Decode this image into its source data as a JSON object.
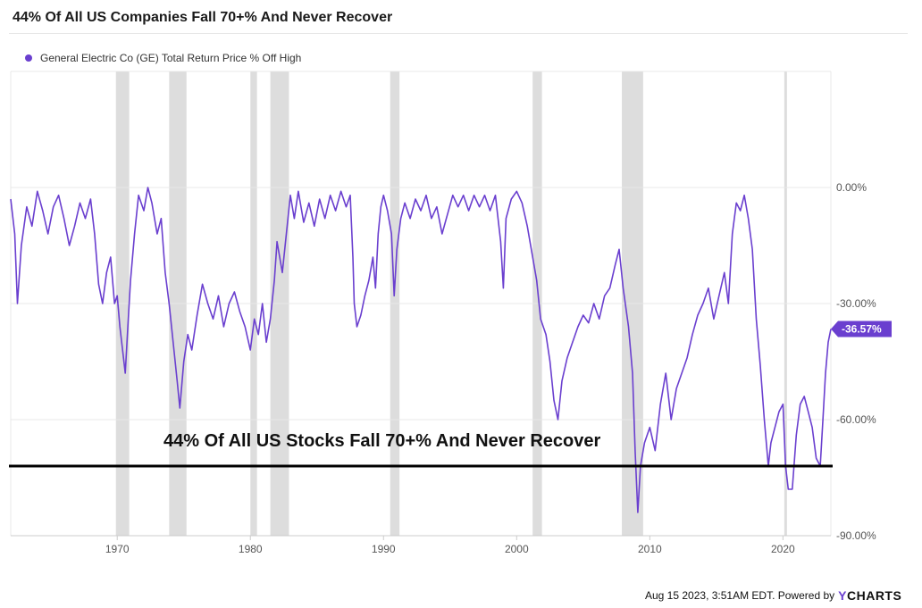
{
  "colors": {
    "series": "#6a3fcf",
    "recession": "#dddddd",
    "threshold_line": "#000000",
    "grid": "#e8e8e8"
  },
  "chart_data": {
    "type": "line",
    "title": "44% Of All US Companies Fall 70+% And Never Recover",
    "legend_position": "top-left",
    "grid": true,
    "xlim": [
      1962,
      2023.6
    ],
    "ylim": [
      -90,
      30
    ],
    "x_ticks": [
      {
        "value": 1970,
        "label": "1970"
      },
      {
        "value": 1980,
        "label": "1980"
      },
      {
        "value": 1990,
        "label": "1990"
      },
      {
        "value": 2000,
        "label": "2000"
      },
      {
        "value": 2010,
        "label": "2010"
      },
      {
        "value": 2020,
        "label": "2020"
      }
    ],
    "y_ticks": [
      {
        "value": 0,
        "label": "0.00%"
      },
      {
        "value": -30,
        "label": "-30.00%"
      },
      {
        "value": -60,
        "label": "-60.00%"
      },
      {
        "value": -90,
        "label": "-90.00%"
      }
    ],
    "series": [
      {
        "name": "General Electric Co (GE) Total Return Price % Off High",
        "last_value": -36.57,
        "last_label": "-36.57%",
        "points": [
          [
            1962.0,
            -3
          ],
          [
            1962.3,
            -12
          ],
          [
            1962.5,
            -30
          ],
          [
            1962.8,
            -15
          ],
          [
            1963.2,
            -5
          ],
          [
            1963.6,
            -10
          ],
          [
            1964.0,
            -1
          ],
          [
            1964.4,
            -6
          ],
          [
            1964.8,
            -12
          ],
          [
            1965.2,
            -5
          ],
          [
            1965.6,
            -2
          ],
          [
            1966.0,
            -8
          ],
          [
            1966.4,
            -15
          ],
          [
            1966.8,
            -10
          ],
          [
            1967.2,
            -4
          ],
          [
            1967.6,
            -8
          ],
          [
            1968.0,
            -3
          ],
          [
            1968.3,
            -12
          ],
          [
            1968.6,
            -25
          ],
          [
            1968.9,
            -30
          ],
          [
            1969.2,
            -22
          ],
          [
            1969.5,
            -18
          ],
          [
            1969.8,
            -30
          ],
          [
            1970.0,
            -28
          ],
          [
            1970.2,
            -36
          ],
          [
            1970.4,
            -42
          ],
          [
            1970.6,
            -48
          ],
          [
            1970.8,
            -36
          ],
          [
            1971.0,
            -24
          ],
          [
            1971.3,
            -12
          ],
          [
            1971.6,
            -2
          ],
          [
            1972.0,
            -6
          ],
          [
            1972.3,
            0
          ],
          [
            1972.6,
            -4
          ],
          [
            1973.0,
            -12
          ],
          [
            1973.3,
            -8
          ],
          [
            1973.6,
            -22
          ],
          [
            1973.9,
            -30
          ],
          [
            1974.2,
            -40
          ],
          [
            1974.5,
            -50
          ],
          [
            1974.7,
            -57
          ],
          [
            1975.0,
            -45
          ],
          [
            1975.3,
            -38
          ],
          [
            1975.6,
            -42
          ],
          [
            1976.0,
            -33
          ],
          [
            1976.4,
            -25
          ],
          [
            1976.8,
            -30
          ],
          [
            1977.2,
            -34
          ],
          [
            1977.6,
            -28
          ],
          [
            1978.0,
            -36
          ],
          [
            1978.4,
            -30
          ],
          [
            1978.8,
            -27
          ],
          [
            1979.2,
            -32
          ],
          [
            1979.6,
            -36
          ],
          [
            1980.0,
            -42
          ],
          [
            1980.3,
            -34
          ],
          [
            1980.6,
            -38
          ],
          [
            1980.9,
            -30
          ],
          [
            1981.2,
            -40
          ],
          [
            1981.5,
            -34
          ],
          [
            1981.8,
            -24
          ],
          [
            1982.0,
            -14
          ],
          [
            1982.4,
            -22
          ],
          [
            1982.7,
            -12
          ],
          [
            1983.0,
            -2
          ],
          [
            1983.3,
            -8
          ],
          [
            1983.6,
            -1
          ],
          [
            1984.0,
            -9
          ],
          [
            1984.4,
            -4
          ],
          [
            1984.8,
            -10
          ],
          [
            1985.2,
            -3
          ],
          [
            1985.6,
            -8
          ],
          [
            1986.0,
            -2
          ],
          [
            1986.4,
            -6
          ],
          [
            1986.8,
            -1
          ],
          [
            1987.2,
            -5
          ],
          [
            1987.5,
            -2
          ],
          [
            1987.7,
            -18
          ],
          [
            1987.8,
            -30
          ],
          [
            1988.0,
            -36
          ],
          [
            1988.3,
            -33
          ],
          [
            1988.6,
            -28
          ],
          [
            1988.9,
            -24
          ],
          [
            1989.2,
            -18
          ],
          [
            1989.4,
            -26
          ],
          [
            1989.6,
            -12
          ],
          [
            1989.8,
            -5
          ],
          [
            1990.0,
            -2
          ],
          [
            1990.3,
            -6
          ],
          [
            1990.6,
            -12
          ],
          [
            1990.8,
            -28
          ],
          [
            1991.0,
            -16
          ],
          [
            1991.3,
            -8
          ],
          [
            1991.6,
            -4
          ],
          [
            1992.0,
            -8
          ],
          [
            1992.4,
            -3
          ],
          [
            1992.8,
            -6
          ],
          [
            1993.2,
            -2
          ],
          [
            1993.6,
            -8
          ],
          [
            1994.0,
            -5
          ],
          [
            1994.4,
            -12
          ],
          [
            1994.8,
            -7
          ],
          [
            1995.2,
            -2
          ],
          [
            1995.6,
            -5
          ],
          [
            1996.0,
            -2
          ],
          [
            1996.4,
            -6
          ],
          [
            1996.8,
            -2
          ],
          [
            1997.2,
            -5
          ],
          [
            1997.6,
            -2
          ],
          [
            1998.0,
            -6
          ],
          [
            1998.4,
            -2
          ],
          [
            1998.8,
            -14
          ],
          [
            1999.0,
            -26
          ],
          [
            1999.2,
            -8
          ],
          [
            1999.6,
            -3
          ],
          [
            2000.0,
            -1
          ],
          [
            2000.4,
            -4
          ],
          [
            2000.8,
            -10
          ],
          [
            2001.2,
            -18
          ],
          [
            2001.5,
            -24
          ],
          [
            2001.8,
            -34
          ],
          [
            2002.2,
            -38
          ],
          [
            2002.5,
            -45
          ],
          [
            2002.8,
            -55
          ],
          [
            2003.1,
            -60
          ],
          [
            2003.4,
            -50
          ],
          [
            2003.8,
            -44
          ],
          [
            2004.2,
            -40
          ],
          [
            2004.6,
            -36
          ],
          [
            2005.0,
            -33
          ],
          [
            2005.4,
            -35
          ],
          [
            2005.8,
            -30
          ],
          [
            2006.2,
            -34
          ],
          [
            2006.6,
            -28
          ],
          [
            2007.0,
            -26
          ],
          [
            2007.4,
            -20
          ],
          [
            2007.7,
            -16
          ],
          [
            2008.0,
            -26
          ],
          [
            2008.4,
            -36
          ],
          [
            2008.7,
            -48
          ],
          [
            2008.9,
            -68
          ],
          [
            2009.1,
            -84
          ],
          [
            2009.3,
            -72
          ],
          [
            2009.6,
            -66
          ],
          [
            2010.0,
            -62
          ],
          [
            2010.4,
            -68
          ],
          [
            2010.8,
            -56
          ],
          [
            2011.2,
            -48
          ],
          [
            2011.6,
            -60
          ],
          [
            2012.0,
            -52
          ],
          [
            2012.4,
            -48
          ],
          [
            2012.8,
            -44
          ],
          [
            2013.2,
            -38
          ],
          [
            2013.6,
            -33
          ],
          [
            2014.0,
            -30
          ],
          [
            2014.4,
            -26
          ],
          [
            2014.8,
            -34
          ],
          [
            2015.2,
            -28
          ],
          [
            2015.6,
            -22
          ],
          [
            2015.9,
            -30
          ],
          [
            2016.2,
            -12
          ],
          [
            2016.5,
            -4
          ],
          [
            2016.8,
            -6
          ],
          [
            2017.1,
            -2
          ],
          [
            2017.4,
            -8
          ],
          [
            2017.7,
            -16
          ],
          [
            2018.0,
            -34
          ],
          [
            2018.3,
            -46
          ],
          [
            2018.6,
            -60
          ],
          [
            2018.9,
            -72
          ],
          [
            2019.1,
            -66
          ],
          [
            2019.4,
            -62
          ],
          [
            2019.7,
            -58
          ],
          [
            2020.0,
            -56
          ],
          [
            2020.2,
            -72
          ],
          [
            2020.4,
            -78
          ],
          [
            2020.7,
            -78
          ],
          [
            2021.0,
            -64
          ],
          [
            2021.3,
            -56
          ],
          [
            2021.6,
            -54
          ],
          [
            2021.9,
            -58
          ],
          [
            2022.2,
            -62
          ],
          [
            2022.5,
            -70
          ],
          [
            2022.8,
            -72
          ],
          [
            2023.0,
            -60
          ],
          [
            2023.2,
            -48
          ],
          [
            2023.4,
            -40
          ],
          [
            2023.6,
            -36.57
          ]
        ]
      }
    ],
    "recessions": [
      [
        1969.9,
        1970.9
      ],
      [
        1973.9,
        1975.2
      ],
      [
        1980.0,
        1980.5
      ],
      [
        1981.5,
        1982.9
      ],
      [
        1990.5,
        1991.2
      ],
      [
        2001.2,
        2001.9
      ],
      [
        2007.9,
        2009.5
      ],
      [
        2020.1,
        2020.3
      ]
    ],
    "threshold_value": -72,
    "annotation": "44% Of All US Stocks Fall 70+% And Never Recover"
  },
  "footer": {
    "timestamp": "Aug 15 2023, 3:51AM EDT. Powered by",
    "logo_y": "Y",
    "logo_rest": "CHARTS"
  }
}
